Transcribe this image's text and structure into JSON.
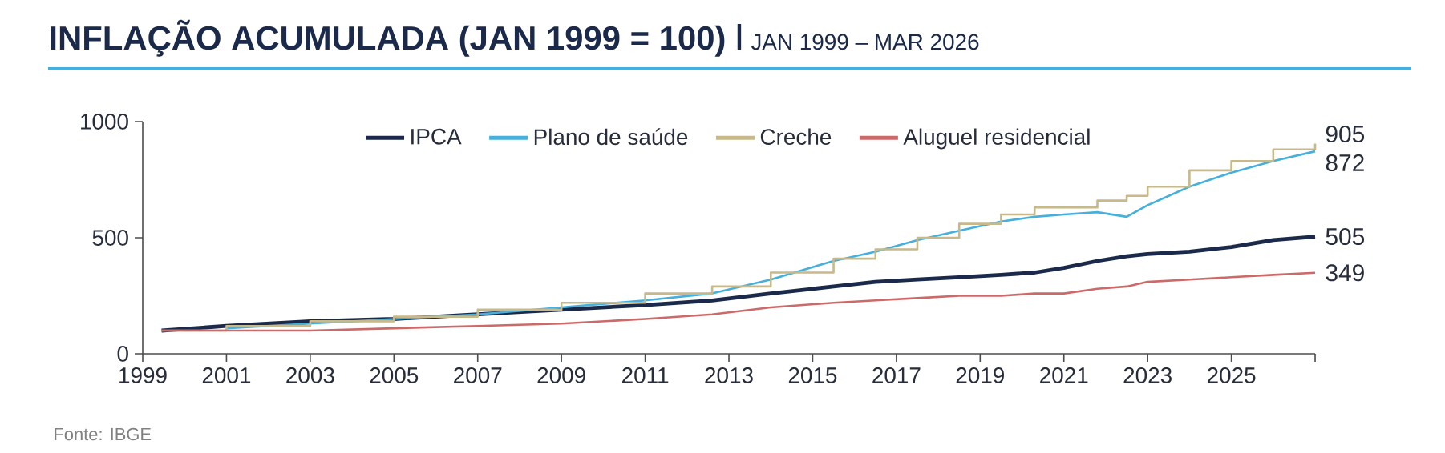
{
  "chart_data": {
    "type": "line",
    "title": "INFLAÇÃO ACUMULADA (JAN 1999 = 100)",
    "subtitle": "JAN 1999 – MAR 2026",
    "x": [
      1999.45,
      2001,
      2003,
      2005,
      2007,
      2009,
      2011,
      2012.6,
      2014,
      2015.5,
      2016.5,
      2017.5,
      2018.5,
      2019.5,
      2020.3,
      2021,
      2021.8,
      2022.5,
      2023,
      2024,
      2025,
      2026,
      2027
    ],
    "series": [
      {
        "name": "IPCA",
        "color": "#1b2a4a",
        "values": [
          100,
          120,
          140,
          150,
          170,
          190,
          210,
          230,
          260,
          290,
          310,
          320,
          330,
          340,
          350,
          370,
          400,
          420,
          430,
          440,
          460,
          490,
          505
        ],
        "value_labels": [
          null,
          null,
          null,
          null,
          null,
          null,
          null,
          null,
          null,
          null,
          null,
          null,
          null,
          null,
          null,
          null,
          null,
          null,
          null,
          null,
          null,
          null,
          "505"
        ]
      },
      {
        "name": "Plano de saúde",
        "color": "#45b0dc",
        "values": [
          null,
          110,
          130,
          150,
          170,
          200,
          230,
          260,
          320,
          400,
          440,
          490,
          530,
          570,
          590,
          600,
          610,
          590,
          640,
          720,
          780,
          830,
          872
        ],
        "value_labels": [
          null,
          null,
          null,
          null,
          null,
          null,
          null,
          null,
          null,
          null,
          null,
          null,
          null,
          null,
          null,
          null,
          null,
          null,
          null,
          null,
          null,
          null,
          "872"
        ]
      },
      {
        "name": "Creche",
        "type": "step",
        "color": "#c8b98a",
        "values": [
          100,
          120,
          140,
          160,
          190,
          220,
          260,
          290,
          350,
          410,
          450,
          500,
          560,
          600,
          630,
          630,
          660,
          680,
          720,
          790,
          830,
          880,
          905
        ],
        "value_labels": [
          null,
          null,
          null,
          null,
          null,
          null,
          null,
          null,
          null,
          null,
          null,
          null,
          null,
          null,
          null,
          null,
          null,
          null,
          null,
          null,
          null,
          null,
          "905"
        ]
      },
      {
        "name": "Aluguel residencial",
        "color": "#cc6a6a",
        "values": [
          100,
          100,
          100,
          110,
          120,
          130,
          150,
          170,
          200,
          220,
          230,
          240,
          250,
          250,
          260,
          260,
          280,
          290,
          310,
          320,
          330,
          340,
          349
        ],
        "value_labels": [
          null,
          null,
          null,
          null,
          null,
          null,
          null,
          null,
          null,
          null,
          null,
          null,
          null,
          null,
          null,
          null,
          null,
          null,
          null,
          null,
          null,
          null,
          "349"
        ]
      }
    ],
    "xlim": [
      1999,
      2027
    ],
    "xticks": [
      1999,
      2001,
      2003,
      2005,
      2007,
      2009,
      2011,
      2013,
      2015,
      2017,
      2019,
      2021,
      2023,
      2025,
      {
        "value": 2027,
        "label": null
      }
    ],
    "ylim": [
      0,
      1000
    ],
    "yticks": [
      0,
      500,
      1000
    ],
    "legend": "top",
    "grid": false,
    "marker": "none",
    "line_style": "solid",
    "annotations": [
      "Fonte: IBGE"
    ]
  }
}
